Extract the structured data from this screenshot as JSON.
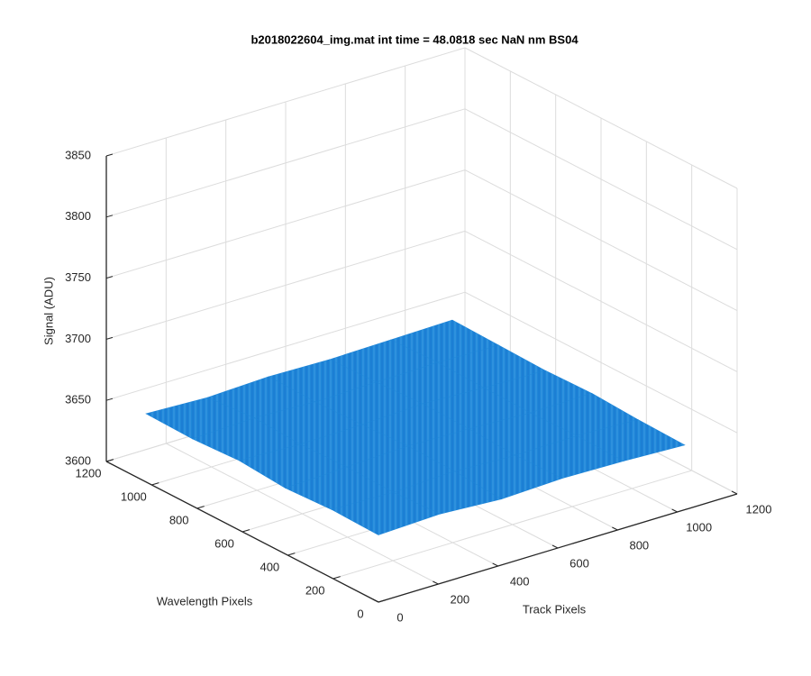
{
  "chart_data": {
    "type": "surface",
    "title": "b2018022604_img.mat int time = 48.0818 sec  NaN nm BS04",
    "xlabel": "Track Pixels",
    "ylabel": "Wavelength Pixels",
    "zlabel": "Signal (ADU)",
    "x": [
      0,
      205,
      410,
      614,
      819,
      1024
    ],
    "y": [
      0,
      205,
      410,
      614,
      819,
      1024
    ],
    "z": [
      [
        3655,
        3657,
        3654,
        3656,
        3655,
        3653
      ],
      [
        3656,
        3655,
        3657,
        3655,
        3656,
        3654
      ],
      [
        3654,
        3656,
        3658,
        3657,
        3655,
        3656
      ],
      [
        3657,
        3655,
        3656,
        3658,
        3656,
        3655
      ],
      [
        3655,
        3657,
        3655,
        3656,
        3657,
        3656
      ],
      [
        3656,
        3654,
        3656,
        3655,
        3656,
        3657
      ]
    ],
    "color": "#1f86d8",
    "xlim": [
      0,
      1200
    ],
    "ylim": [
      0,
      1200
    ],
    "zlim": [
      3600,
      3850
    ],
    "xticks": [
      0,
      200,
      400,
      600,
      800,
      1000,
      1200
    ],
    "yticks": [
      0,
      200,
      400,
      600,
      800,
      1000,
      1200
    ],
    "zticks": [
      3600,
      3650,
      3700,
      3750,
      3800,
      3850
    ],
    "grid": true
  }
}
